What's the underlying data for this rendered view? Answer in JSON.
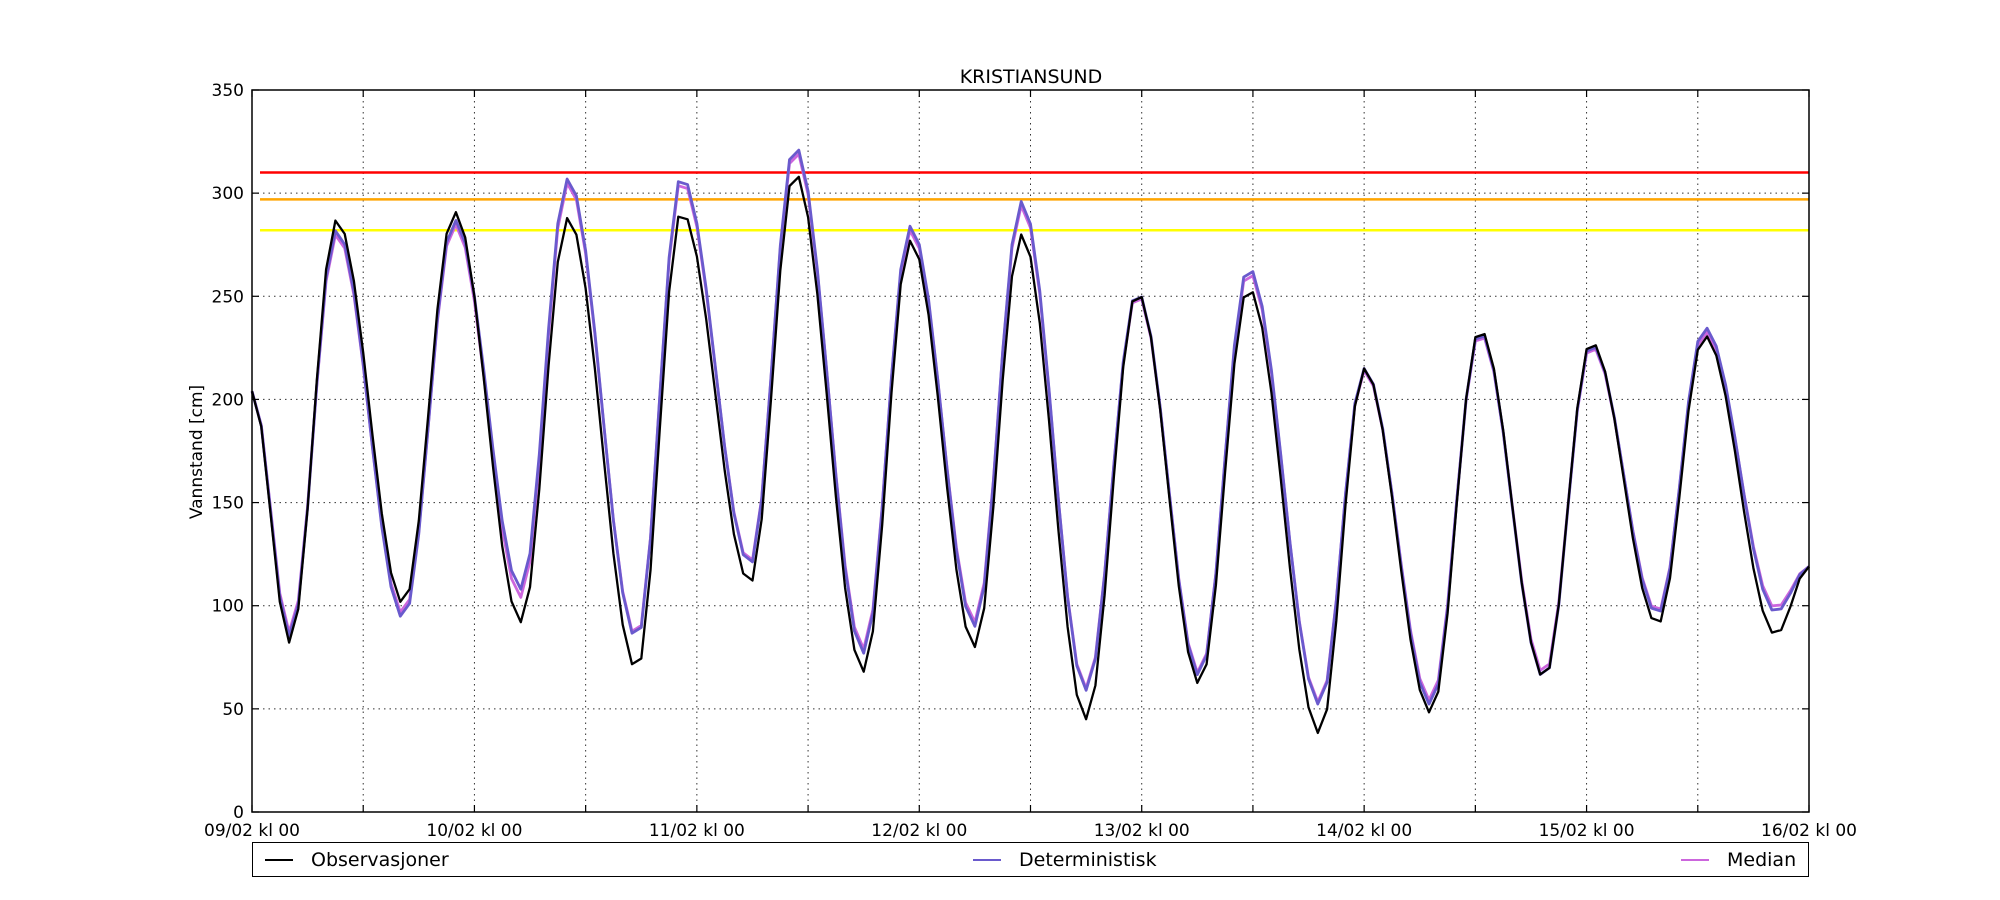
{
  "chart_data": {
    "type": "line",
    "title": "KRISTIANSUND",
    "xlabel": "",
    "ylabel": "Vannstand [cm]",
    "ylim": [
      0,
      350
    ],
    "y_ticks": [
      0,
      50,
      100,
      150,
      200,
      250,
      300,
      350
    ],
    "x_start": "09/02 kl 00",
    "x_end": "16/02 kl 00",
    "x_tick_labels": [
      "09/02 kl 00",
      "10/02 kl 00",
      "11/02 kl 00",
      "12/02 kl 00",
      "13/02 kl 00",
      "14/02 kl 00",
      "15/02 kl 00",
      "16/02 kl 00"
    ],
    "grid": true,
    "legend_position": "bottom",
    "thresholds": [
      {
        "value": 310,
        "color": "#ff0000"
      },
      {
        "value": 297,
        "color": "#ffa500"
      },
      {
        "value": 282,
        "color": "#ffff00"
      }
    ],
    "series": [
      {
        "name": "Observasjoner",
        "color": "#000000",
        "tidal": {
          "highs": [
            [
              0.38,
              287
            ],
            [
              0.91,
              291
            ],
            [
              1.42,
              288
            ],
            [
              1.93,
              291
            ],
            [
              2.44,
              310
            ],
            [
              2.96,
              277
            ],
            [
              3.46,
              280
            ],
            [
              3.98,
              252
            ],
            [
              4.48,
              254
            ],
            [
              5.0,
              215
            ],
            [
              5.52,
              234
            ],
            [
              6.02,
              228
            ],
            [
              6.53,
              231
            ]
          ],
          "lows": [
            [
              0.17,
              82
            ],
            [
              0.68,
              101
            ],
            [
              1.21,
              92
            ],
            [
              1.73,
              69
            ],
            [
              2.24,
              111
            ],
            [
              2.75,
              68
            ],
            [
              3.25,
              80
            ],
            [
              3.75,
              45
            ],
            [
              4.26,
              62
            ],
            [
              4.8,
              38
            ],
            [
              5.3,
              48
            ],
            [
              5.81,
              65
            ],
            [
              6.32,
              91
            ],
            [
              6.85,
              86
            ]
          ],
          "start": 204,
          "end": 119
        }
      },
      {
        "name": "Deterministisk",
        "color": "#6a5acd",
        "tidal": {
          "highs": [
            [
              0.38,
              282
            ],
            [
              0.91,
              287
            ],
            [
              1.42,
              307
            ],
            [
              1.93,
              308
            ],
            [
              2.44,
              323
            ],
            [
              2.96,
              284
            ],
            [
              3.46,
              296
            ],
            [
              3.98,
              252
            ],
            [
              4.48,
              264
            ],
            [
              5.0,
              215
            ],
            [
              5.52,
              233
            ],
            [
              6.02,
              227
            ],
            [
              6.53,
              235
            ]
          ],
          "lows": [
            [
              0.17,
              85
            ],
            [
              0.68,
              94
            ],
            [
              1.21,
              108
            ],
            [
              1.73,
              84
            ],
            [
              2.24,
              120
            ],
            [
              2.75,
              77
            ],
            [
              3.25,
              90
            ],
            [
              3.75,
              59
            ],
            [
              4.26,
              66
            ],
            [
              4.8,
              52
            ],
            [
              5.3,
              52
            ],
            [
              5.81,
              65
            ],
            [
              6.32,
              96
            ],
            [
              6.85,
              97
            ]
          ],
          "start": 204,
          "end": 119
        }
      },
      {
        "name": "Median",
        "color": "#cc66dd",
        "tidal": {
          "highs": [
            [
              0.38,
              280
            ],
            [
              0.91,
              285
            ],
            [
              1.42,
              305
            ],
            [
              1.93,
              306
            ],
            [
              2.44,
              321
            ],
            [
              2.96,
              282
            ],
            [
              3.46,
              294
            ],
            [
              3.98,
              251
            ],
            [
              4.48,
              262
            ],
            [
              5.0,
              214
            ],
            [
              5.52,
              232
            ],
            [
              6.02,
              226
            ],
            [
              6.53,
              233
            ]
          ],
          "lows": [
            [
              0.17,
              87
            ],
            [
              0.68,
              96
            ],
            [
              1.21,
              104
            ],
            [
              1.73,
              85
            ],
            [
              2.24,
              121
            ],
            [
              2.75,
              79
            ],
            [
              3.25,
              92
            ],
            [
              3.75,
              60
            ],
            [
              4.26,
              67
            ],
            [
              4.8,
              53
            ],
            [
              5.3,
              54
            ],
            [
              5.81,
              67
            ],
            [
              6.32,
              97
            ],
            [
              6.85,
              99
            ]
          ],
          "start": 204,
          "end": 119
        }
      }
    ]
  }
}
